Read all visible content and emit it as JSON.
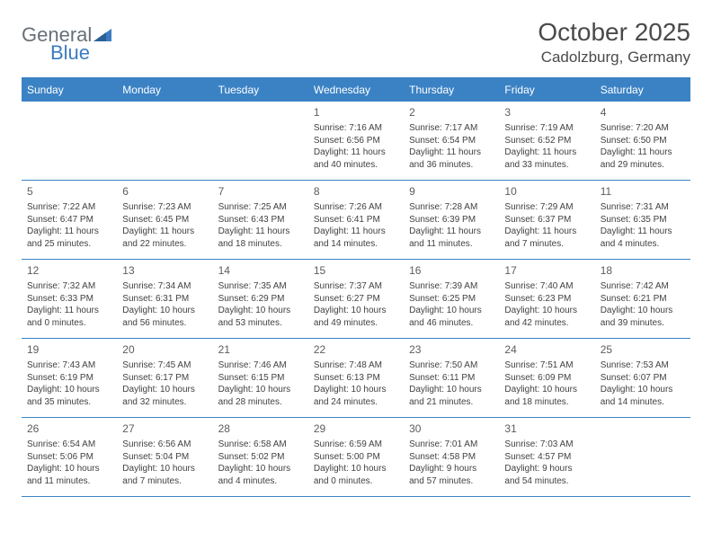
{
  "logo": {
    "text1": "General",
    "text2": "Blue"
  },
  "title": "October 2025",
  "location": "Cadolzburg, Germany",
  "colors": {
    "header_bg": "#3b82c4",
    "header_text": "#ffffff",
    "border": "#3b82c4",
    "body_text": "#414141",
    "title_text": "#4a4a4a",
    "logo_gray": "#677078",
    "logo_blue": "#3b7cc0",
    "page_bg": "#ffffff"
  },
  "fonts": {
    "title_size": 28,
    "location_size": 17,
    "dayheader_size": 12,
    "cell_size": 10,
    "daynum_size": 12
  },
  "day_headers": [
    "Sunday",
    "Monday",
    "Tuesday",
    "Wednesday",
    "Thursday",
    "Friday",
    "Saturday"
  ],
  "weeks": [
    [
      null,
      null,
      null,
      {
        "n": "1",
        "sr": "7:16 AM",
        "ss": "6:56 PM",
        "dl": "11 hours and 40 minutes."
      },
      {
        "n": "2",
        "sr": "7:17 AM",
        "ss": "6:54 PM",
        "dl": "11 hours and 36 minutes."
      },
      {
        "n": "3",
        "sr": "7:19 AM",
        "ss": "6:52 PM",
        "dl": "11 hours and 33 minutes."
      },
      {
        "n": "4",
        "sr": "7:20 AM",
        "ss": "6:50 PM",
        "dl": "11 hours and 29 minutes."
      }
    ],
    [
      {
        "n": "5",
        "sr": "7:22 AM",
        "ss": "6:47 PM",
        "dl": "11 hours and 25 minutes."
      },
      {
        "n": "6",
        "sr": "7:23 AM",
        "ss": "6:45 PM",
        "dl": "11 hours and 22 minutes."
      },
      {
        "n": "7",
        "sr": "7:25 AM",
        "ss": "6:43 PM",
        "dl": "11 hours and 18 minutes."
      },
      {
        "n": "8",
        "sr": "7:26 AM",
        "ss": "6:41 PM",
        "dl": "11 hours and 14 minutes."
      },
      {
        "n": "9",
        "sr": "7:28 AM",
        "ss": "6:39 PM",
        "dl": "11 hours and 11 minutes."
      },
      {
        "n": "10",
        "sr": "7:29 AM",
        "ss": "6:37 PM",
        "dl": "11 hours and 7 minutes."
      },
      {
        "n": "11",
        "sr": "7:31 AM",
        "ss": "6:35 PM",
        "dl": "11 hours and 4 minutes."
      }
    ],
    [
      {
        "n": "12",
        "sr": "7:32 AM",
        "ss": "6:33 PM",
        "dl": "11 hours and 0 minutes."
      },
      {
        "n": "13",
        "sr": "7:34 AM",
        "ss": "6:31 PM",
        "dl": "10 hours and 56 minutes."
      },
      {
        "n": "14",
        "sr": "7:35 AM",
        "ss": "6:29 PM",
        "dl": "10 hours and 53 minutes."
      },
      {
        "n": "15",
        "sr": "7:37 AM",
        "ss": "6:27 PM",
        "dl": "10 hours and 49 minutes."
      },
      {
        "n": "16",
        "sr": "7:39 AM",
        "ss": "6:25 PM",
        "dl": "10 hours and 46 minutes."
      },
      {
        "n": "17",
        "sr": "7:40 AM",
        "ss": "6:23 PM",
        "dl": "10 hours and 42 minutes."
      },
      {
        "n": "18",
        "sr": "7:42 AM",
        "ss": "6:21 PM",
        "dl": "10 hours and 39 minutes."
      }
    ],
    [
      {
        "n": "19",
        "sr": "7:43 AM",
        "ss": "6:19 PM",
        "dl": "10 hours and 35 minutes."
      },
      {
        "n": "20",
        "sr": "7:45 AM",
        "ss": "6:17 PM",
        "dl": "10 hours and 32 minutes."
      },
      {
        "n": "21",
        "sr": "7:46 AM",
        "ss": "6:15 PM",
        "dl": "10 hours and 28 minutes."
      },
      {
        "n": "22",
        "sr": "7:48 AM",
        "ss": "6:13 PM",
        "dl": "10 hours and 24 minutes."
      },
      {
        "n": "23",
        "sr": "7:50 AM",
        "ss": "6:11 PM",
        "dl": "10 hours and 21 minutes."
      },
      {
        "n": "24",
        "sr": "7:51 AM",
        "ss": "6:09 PM",
        "dl": "10 hours and 18 minutes."
      },
      {
        "n": "25",
        "sr": "7:53 AM",
        "ss": "6:07 PM",
        "dl": "10 hours and 14 minutes."
      }
    ],
    [
      {
        "n": "26",
        "sr": "6:54 AM",
        "ss": "5:06 PM",
        "dl": "10 hours and 11 minutes."
      },
      {
        "n": "27",
        "sr": "6:56 AM",
        "ss": "5:04 PM",
        "dl": "10 hours and 7 minutes."
      },
      {
        "n": "28",
        "sr": "6:58 AM",
        "ss": "5:02 PM",
        "dl": "10 hours and 4 minutes."
      },
      {
        "n": "29",
        "sr": "6:59 AM",
        "ss": "5:00 PM",
        "dl": "10 hours and 0 minutes."
      },
      {
        "n": "30",
        "sr": "7:01 AM",
        "ss": "4:58 PM",
        "dl": "9 hours and 57 minutes."
      },
      {
        "n": "31",
        "sr": "7:03 AM",
        "ss": "4:57 PM",
        "dl": "9 hours and 54 minutes."
      },
      null
    ]
  ],
  "labels": {
    "sunrise": "Sunrise: ",
    "sunset": "Sunset: ",
    "daylight": "Daylight: "
  }
}
